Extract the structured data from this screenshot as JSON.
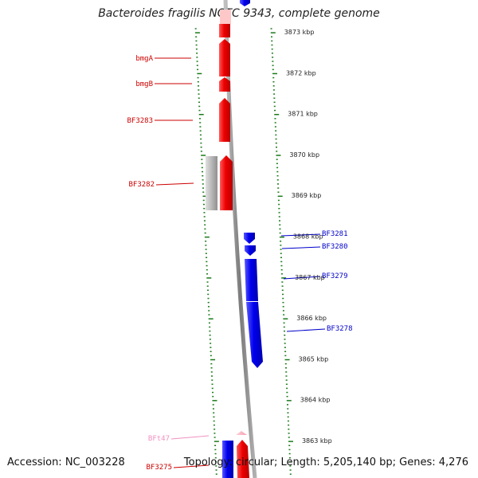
{
  "title": "Bacteroides fragilis NCTC 9343, complete genome",
  "footer": {
    "accession": "Accession: NC_003228",
    "info": "Topology: circular; Length: 5,205,140 bp; Genes: 4,276"
  },
  "colors": {
    "forward_gene": "#ee0000",
    "reverse_gene": "#0000ee",
    "rna_gene": "#f0a0c8",
    "other_feature": "#b8b8b8",
    "backbone": "#8a8a8a",
    "ticks": "#1a7a1a"
  },
  "scale": {
    "tick_labels": [
      {
        "kbp": 3873,
        "label": "3873 kbp"
      },
      {
        "kbp": 3872,
        "label": "3872 kbp"
      },
      {
        "kbp": 3871,
        "label": "3871 kbp"
      },
      {
        "kbp": 3870,
        "label": "3870 kbp"
      },
      {
        "kbp": 3869,
        "label": "3869 kbp"
      },
      {
        "kbp": 3868,
        "label": "3868 kbp"
      },
      {
        "kbp": 3867,
        "label": "3867 kbp"
      },
      {
        "kbp": 3866,
        "label": "3866 kbp"
      },
      {
        "kbp": 3865,
        "label": "3865 kbp"
      },
      {
        "kbp": 3864,
        "label": "3864 kbp"
      },
      {
        "kbp": 3863,
        "label": "3863 kbp"
      }
    ]
  },
  "genes": [
    {
      "name": "bmgA",
      "strand": "forward",
      "color": "#cc0000"
    },
    {
      "name": "bmgB",
      "strand": "forward",
      "color": "#cc0000"
    },
    {
      "name": "BF3283",
      "strand": "forward",
      "color": "#cc0000"
    },
    {
      "name": "BF3282",
      "strand": "forward",
      "color": "#cc0000"
    },
    {
      "name": "BF3281",
      "strand": "reverse",
      "color": "#0000cc"
    },
    {
      "name": "BF3280",
      "strand": "reverse",
      "color": "#0000cc"
    },
    {
      "name": "BF3279",
      "strand": "reverse",
      "color": "#0000cc"
    },
    {
      "name": "BF3278",
      "strand": "reverse",
      "color": "#0000cc"
    },
    {
      "name": "BFt47",
      "strand": "forward",
      "color": "#f090c0"
    },
    {
      "name": "BF3275",
      "strand": "forward",
      "color": "#cc0000"
    }
  ]
}
